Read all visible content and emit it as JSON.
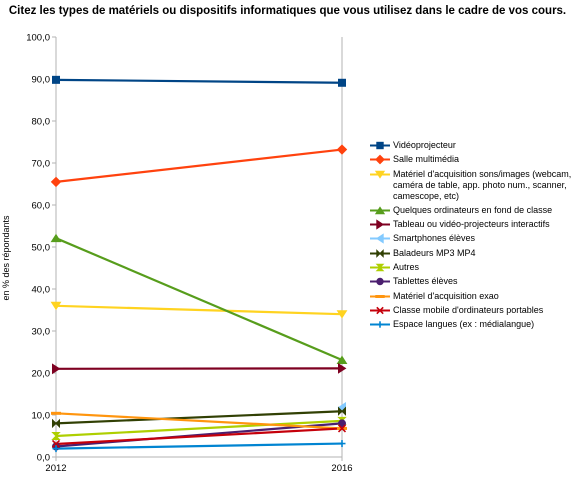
{
  "chart_data": {
    "type": "line",
    "title": "Citez les types de matériels ou dispositifs informatiques que vous utilisez dans le cadre de vos cours.",
    "xlabel": "",
    "ylabel": "en % des répondants",
    "x": [
      "2012",
      "2016"
    ],
    "ylim": [
      0,
      100
    ],
    "yticks": [
      "0,0",
      "10,0",
      "20,0",
      "30,0",
      "40,0",
      "50,0",
      "60,0",
      "70,0",
      "80,0",
      "90,0",
      "100,0"
    ],
    "grid": false,
    "legend_position": "right",
    "series": [
      {
        "name": "Vidéoprojecteur",
        "values": [
          89.8,
          89.1
        ],
        "color": "#004586",
        "marker": "square"
      },
      {
        "name": "Salle multimédia",
        "values": [
          65.5,
          73.2
        ],
        "color": "#ff420e",
        "marker": "diamond"
      },
      {
        "name": "Matériel d'acquisition sons/images (webcam, caméra de table, app. photo num., scanner, camescope, etc)",
        "values": [
          36.0,
          34.0
        ],
        "color": "#ffd320",
        "marker": "triangle-down"
      },
      {
        "name": "Quelques ordinateurs en fond de classe",
        "values": [
          52.1,
          23.1
        ],
        "color": "#579d1c",
        "marker": "triangle-up"
      },
      {
        "name": "Tableau ou vidéo-projecteurs interactifs",
        "values": [
          21.0,
          21.1
        ],
        "color": "#7e0021",
        "marker": "triangle-right"
      },
      {
        "name": "Smartphones élèves",
        "values": [
          null,
          11.8
        ],
        "color": "#83caff",
        "marker": "triangle-left"
      },
      {
        "name": "Baladeurs MP3 MP4",
        "values": [
          8.0,
          10.9
        ],
        "color": "#314004",
        "marker": "bowtie"
      },
      {
        "name": "Autres",
        "values": [
          5.0,
          8.6
        ],
        "color": "#aecf00",
        "marker": "hourglass"
      },
      {
        "name": "Tablettes élèves",
        "values": [
          2.5,
          8.0
        ],
        "color": "#4b1f6f",
        "marker": "circle"
      },
      {
        "name": "Matériel d'acquisition exao",
        "values": [
          10.4,
          6.8
        ],
        "color": "#ff950e",
        "marker": "dash"
      },
      {
        "name": "Classe mobile d'ordinateurs portables",
        "values": [
          3.1,
          6.8
        ],
        "color": "#c5000b",
        "marker": "x"
      },
      {
        "name": "Espace langues (ex : médialangue)",
        "values": [
          2.0,
          3.2
        ],
        "color": "#0084d1",
        "marker": "plus"
      }
    ]
  }
}
